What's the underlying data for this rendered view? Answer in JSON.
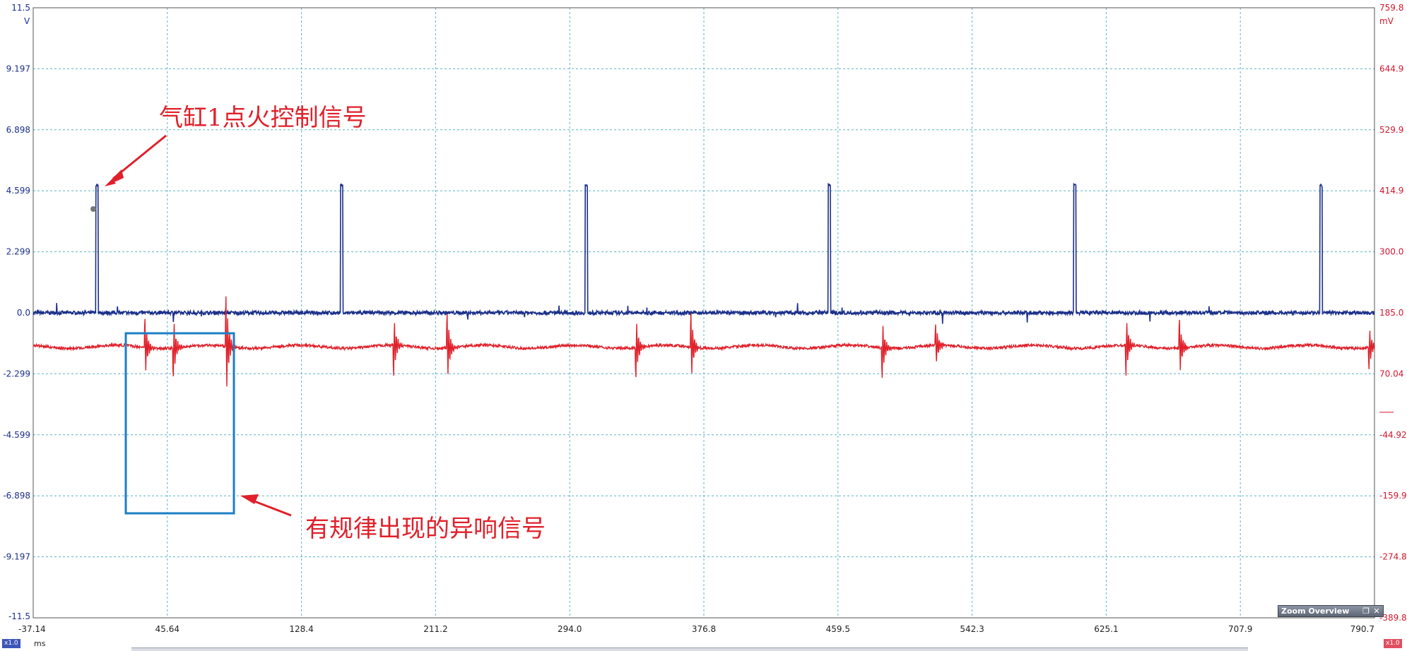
{
  "chart_data": {
    "type": "line",
    "x_unit": "ms",
    "xlim": [
      -37.14,
      790.7
    ],
    "x_ticks": [
      "-37.14",
      "45.64",
      "128.4",
      "211.2",
      "294.0",
      "376.8",
      "459.5",
      "542.3",
      "625.1",
      "707.9",
      "790.7"
    ],
    "y_left": {
      "unit": "V",
      "range": [
        -11.5,
        11.5
      ],
      "ticks": [
        "11.5",
        "9.197",
        "6.898",
        "4.599",
        "2.299",
        "0.0",
        "-2.299",
        "-4.599",
        "-6.898",
        "-9.197",
        "-11.5"
      ],
      "color": "#1b2f8a"
    },
    "y_right": {
      "unit": "mV",
      "range": [
        -389.8,
        759.8
      ],
      "ticks": [
        "759.8",
        "644.9",
        "529.9",
        "414.9",
        "300.0",
        "185.0",
        "70.04",
        "",
        "-44.92",
        "-159.9",
        "-274.8",
        "-389.8"
      ],
      "color": "#d3172f"
    },
    "grid": "dashed",
    "series": [
      {
        "axis": "left",
        "color": "#1b2f8a",
        "baseline": 0.0,
        "pulse_level": 4.8,
        "pulses_ms": [
          1.5,
          152.5,
          303.5,
          453.5,
          605.0,
          757.0
        ]
      },
      {
        "axis": "right",
        "color": "#e0202a",
        "baseline": 121.0,
        "bursts_ms": [
          31.5,
          49.0,
          81.5,
          185.0,
          218.0,
          334.5,
          368.5,
          486.5,
          519.5,
          637.0,
          670.0,
          787.0
        ],
        "burst_amplitude_mv": [
          75,
          75,
          130,
          75,
          85,
          75,
          85,
          75,
          55,
          75,
          70,
          55
        ]
      }
    ],
    "annotations": [
      {
        "text": "气缸1点火控制信号"
      },
      {
        "text": "有规律出现的异响信号"
      }
    ]
  },
  "ui": {
    "zoom_overview_label": "Zoom Overview",
    "restore_icon": "restore-icon",
    "close_icon": "close-icon",
    "badge_left": "x1.0",
    "badge_right": "x1.0"
  }
}
